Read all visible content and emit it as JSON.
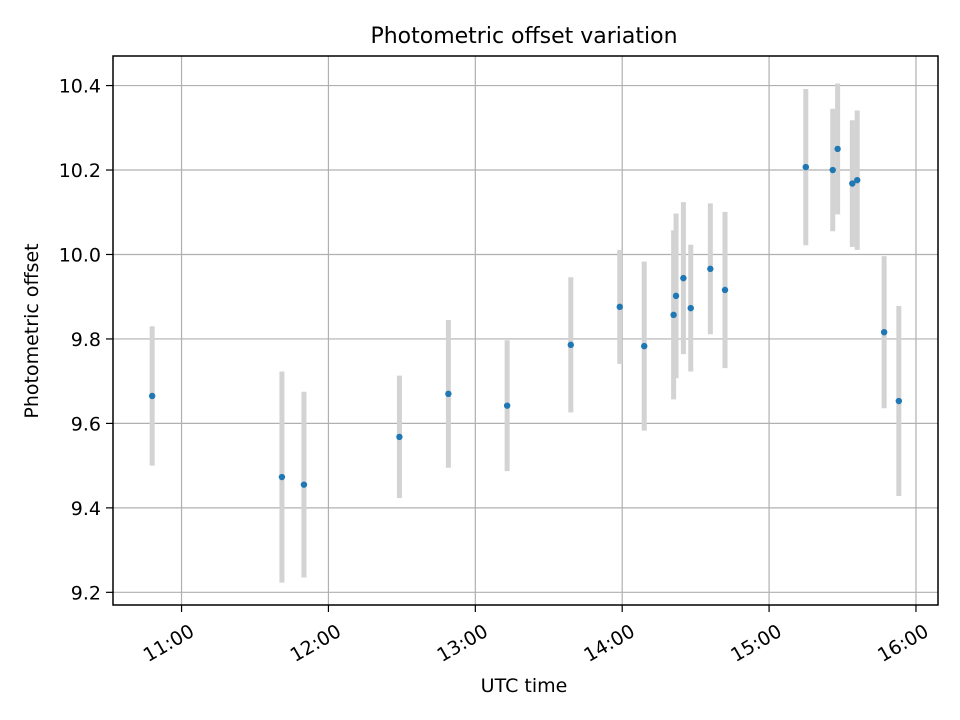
{
  "chart_data": {
    "type": "scatter",
    "title": "Photometric offset variation",
    "xlabel": "UTC time",
    "ylabel": "Photometric offset",
    "x_unit": "UTC hours",
    "xlim": [
      "10:32",
      "16:09"
    ],
    "ylim": [
      9.17,
      10.47
    ],
    "xticks": [
      "11:00",
      "12:00",
      "13:00",
      "14:00",
      "15:00",
      "16:00"
    ],
    "yticks": [
      "9.2",
      "9.4",
      "9.6",
      "9.8",
      "10.0",
      "10.2",
      "10.4"
    ],
    "grid": true,
    "legend": "none",
    "series": [
      {
        "marker_color": "#1f77b4",
        "error_color": "#d3d3d3",
        "points": [
          {
            "x": "10:48",
            "y": 9.665,
            "err": 0.165
          },
          {
            "x": "11:41",
            "y": 9.473,
            "err": 0.25
          },
          {
            "x": "11:50",
            "y": 9.455,
            "err": 0.22
          },
          {
            "x": "12:29",
            "y": 9.568,
            "err": 0.145
          },
          {
            "x": "12:49",
            "y": 9.67,
            "err": 0.175
          },
          {
            "x": "13:13",
            "y": 9.642,
            "err": 0.155
          },
          {
            "x": "13:39",
            "y": 9.786,
            "err": 0.16
          },
          {
            "x": "13:59",
            "y": 9.876,
            "err": 0.135
          },
          {
            "x": "14:09",
            "y": 9.783,
            "err": 0.2
          },
          {
            "x": "14:21",
            "y": 9.857,
            "err": 0.2
          },
          {
            "x": "14:22",
            "y": 9.902,
            "err": 0.195
          },
          {
            "x": "14:25",
            "y": 9.944,
            "err": 0.18
          },
          {
            "x": "14:28",
            "y": 9.873,
            "err": 0.15
          },
          {
            "x": "14:36",
            "y": 9.966,
            "err": 0.155
          },
          {
            "x": "14:42",
            "y": 9.916,
            "err": 0.185
          },
          {
            "x": "15:15",
            "y": 10.207,
            "err": 0.185
          },
          {
            "x": "15:26",
            "y": 10.2,
            "err": 0.145
          },
          {
            "x": "15:28",
            "y": 10.25,
            "err": 0.155
          },
          {
            "x": "15:34",
            "y": 10.168,
            "err": 0.15
          },
          {
            "x": "15:36",
            "y": 10.176,
            "err": 0.165
          },
          {
            "x": "15:47",
            "y": 9.816,
            "err": 0.18
          },
          {
            "x": "15:53",
            "y": 9.653,
            "err": 0.225
          }
        ]
      }
    ]
  }
}
